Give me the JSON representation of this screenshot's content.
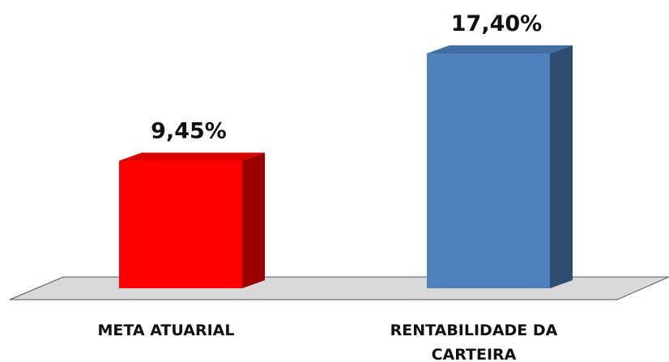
{
  "chart_data": {
    "type": "bar3d",
    "categories": [
      "META ATUARIAL",
      "RENTABILIDADE DA CARTEIRA"
    ],
    "values": [
      9.45,
      17.4
    ],
    "value_labels": [
      "9,45%",
      "17,40%"
    ],
    "colors": [
      "#ff0000",
      "#4f81bd"
    ]
  }
}
